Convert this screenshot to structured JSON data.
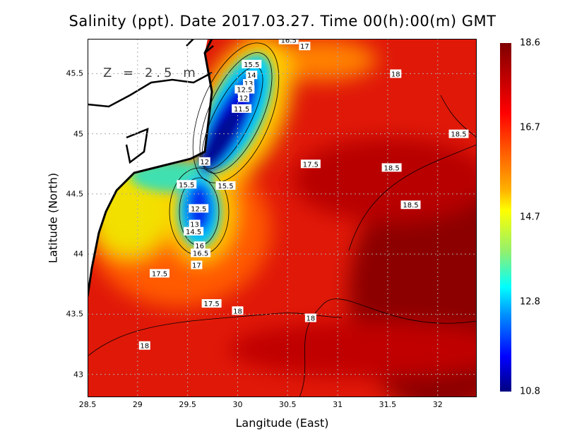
{
  "title": "Salinity (ppt). Date 2017.03.27. Time 00(h):00(m) GMT",
  "depth_label": "Z = 2.5 m",
  "chart_data": {
    "type": "heatmap",
    "title": "Salinity (ppt). Date 2017.03.27. Time 00(h):00(m) GMT",
    "xlabel": "Langitude (East)",
    "ylabel": "Latitude (North)",
    "xlim": [
      28.5,
      32.39
    ],
    "ylim": [
      42.81,
      45.79
    ],
    "xticks": [
      "28.5",
      "29",
      "29.5",
      "30",
      "30.5",
      "31",
      "31.5",
      "32"
    ],
    "yticks": [
      "45.5",
      "45",
      "44.5",
      "44",
      "43.5",
      "43"
    ],
    "grid": true,
    "colorbar": {
      "min": 10.8,
      "max": 18.6,
      "ticks": [
        "18.6",
        "16.7",
        "14.7",
        "12.8",
        "10.8"
      ]
    },
    "contour_labels": [
      {
        "text": "16.5",
        "lon": 30.51,
        "lat": 45.78
      },
      {
        "text": "17",
        "lon": 30.67,
        "lat": 45.73
      },
      {
        "text": "15.5",
        "lon": 30.14,
        "lat": 45.58
      },
      {
        "text": "14",
        "lon": 30.14,
        "lat": 45.49
      },
      {
        "text": "13",
        "lon": 30.11,
        "lat": 45.42
      },
      {
        "text": "12.5",
        "lon": 30.07,
        "lat": 45.37
      },
      {
        "text": "12",
        "lon": 30.06,
        "lat": 45.3
      },
      {
        "text": "11.5",
        "lon": 30.04,
        "lat": 45.21
      },
      {
        "text": "18",
        "lon": 31.58,
        "lat": 45.5
      },
      {
        "text": "18.5",
        "lon": 32.21,
        "lat": 45.0
      },
      {
        "text": "12",
        "lon": 29.67,
        "lat": 44.77
      },
      {
        "text": "17.5",
        "lon": 30.73,
        "lat": 44.75
      },
      {
        "text": "18.5",
        "lon": 31.54,
        "lat": 44.72
      },
      {
        "text": "15.5",
        "lon": 29.49,
        "lat": 44.58
      },
      {
        "text": "15.5",
        "lon": 29.88,
        "lat": 44.57
      },
      {
        "text": "18.5",
        "lon": 31.73,
        "lat": 44.41
      },
      {
        "text": "12.5",
        "lon": 29.61,
        "lat": 44.38
      },
      {
        "text": "13",
        "lon": 29.57,
        "lat": 44.25
      },
      {
        "text": "14.5",
        "lon": 29.56,
        "lat": 44.19
      },
      {
        "text": "16",
        "lon": 29.62,
        "lat": 44.07
      },
      {
        "text": "16.5",
        "lon": 29.63,
        "lat": 44.01
      },
      {
        "text": "17",
        "lon": 29.59,
        "lat": 43.91
      },
      {
        "text": "17.5",
        "lon": 29.22,
        "lat": 43.84
      },
      {
        "text": "17.5",
        "lon": 29.74,
        "lat": 43.59
      },
      {
        "text": "18",
        "lon": 30.0,
        "lat": 43.53
      },
      {
        "text": "18",
        "lon": 30.73,
        "lat": 43.47
      },
      {
        "text": "18",
        "lon": 29.07,
        "lat": 43.24
      }
    ]
  }
}
